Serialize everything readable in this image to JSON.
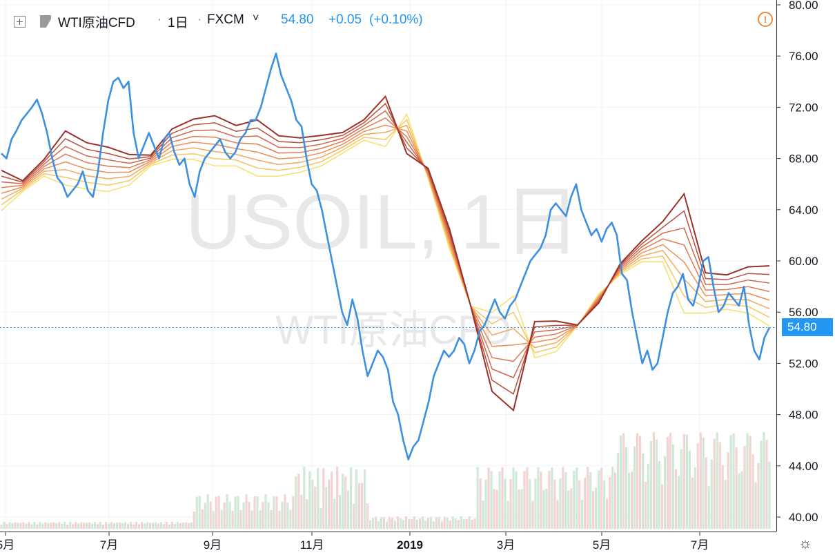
{
  "header": {
    "symbol": "WTI原油CFD",
    "interval": "1日",
    "exchange": "FXCM",
    "dropdown_glyph": "˅",
    "last": "54.80",
    "change": "+0.05",
    "change_pct": "(+0.10%)",
    "separator": "·",
    "warning_glyph": "!"
  },
  "watermark": {
    "line1": "USOIL, 1日",
    "line2": "WTI原油CFD"
  },
  "current_price_label": "54.80",
  "settings_glyph": "☼",
  "colors": {
    "price_line": "#3d8fe0",
    "volume_up": "#cfe9d6",
    "volume_down": "#f4d3d3",
    "ribbon": [
      "#f7e06b",
      "#f6c660",
      "#f2a85a",
      "#ec8d56",
      "#e07a52",
      "#cf6749",
      "#b94e3d",
      "#9c3026"
    ],
    "accent": "#2196f3"
  },
  "chart_data": {
    "type": "line",
    "title": "WTI原油CFD",
    "y_axis_ticks": [
      "80.00",
      "76.00",
      "72.00",
      "68.00",
      "64.00",
      "60.00",
      "56.00",
      "52.00",
      "48.00",
      "44.00",
      "40.00"
    ],
    "x_axis_ticks": [
      "5月",
      "7月",
      "9月",
      "11月",
      "2019",
      "3月",
      "5月",
      "7月"
    ],
    "ylim": [
      40,
      80
    ],
    "grid": true,
    "series": [
      {
        "values": [
          68.4,
          68.0,
          69.5,
          70.2,
          71.0,
          71.5,
          72.0,
          72.6,
          71.5,
          70.0,
          68.0,
          66.5,
          66.0,
          65.0,
          65.5,
          66.0,
          67.0,
          65.5,
          65.0,
          67.0,
          70.0,
          72.5,
          74.0,
          74.3,
          73.5,
          74.0,
          70.0,
          68.0,
          69.0,
          70.0,
          69.0,
          68.0,
          69.5,
          70.0,
          68.5,
          67.5,
          68.0,
          66.0,
          65.0,
          67.0,
          68.0,
          68.5,
          69.0,
          69.5,
          68.5,
          68.0,
          68.5,
          69.5,
          70.0,
          71.0,
          71.0,
          72.0,
          73.5,
          75.0,
          76.2,
          74.5,
          73.5,
          72.5,
          71.0,
          70.5,
          68.0,
          66.0,
          65.5,
          64.0,
          62.0,
          60.0,
          58.0,
          56.0,
          55.0,
          57.0,
          55.5,
          53.0,
          51.0,
          52.0,
          53.0,
          52.5,
          51.5,
          49.0,
          48.0,
          46.0,
          44.5,
          45.5,
          46.0,
          47.5,
          49.0,
          51.0,
          52.0,
          53.0,
          52.5,
          53.0,
          54.0,
          53.5,
          52.0,
          53.0,
          54.5,
          55.0,
          56.0,
          57.0,
          56.0,
          55.5,
          56.5,
          57.0,
          58.0,
          59.0,
          60.0,
          60.5,
          61.0,
          62.0,
          64.0,
          64.5,
          64.0,
          63.5,
          65.0,
          66.0,
          64.0,
          63.0,
          62.0,
          62.5,
          61.5,
          62.5,
          63.0,
          62.0,
          59.0,
          58.5,
          56.0,
          54.0,
          52.0,
          53.0,
          51.5,
          52.0,
          54.0,
          56.0,
          57.5,
          58.0,
          59.0,
          57.0,
          56.5,
          58.0,
          60.0,
          60.3,
          58.0,
          56.0,
          56.5,
          57.5,
          57.0,
          56.5,
          58.0,
          55.0,
          53.0,
          52.3,
          54.0,
          54.8
        ]
      },
      {
        "values": [
          65.5,
          67.0,
          68.2,
          67.5,
          67.2,
          67.0,
          67.5,
          69.0,
          69.5,
          69.5,
          69.0,
          69.0,
          68.2,
          68.2,
          68.5,
          69.0,
          70.0,
          71.0,
          70.5,
          68.0,
          63.0,
          57.5,
          53.0,
          52.5,
          53.8,
          54.0,
          54.5,
          56.5,
          59.0,
          60.5,
          61.5,
          61.5,
          57.5,
          57.5,
          57.8,
          57.5,
          56.5
        ]
      }
    ]
  }
}
